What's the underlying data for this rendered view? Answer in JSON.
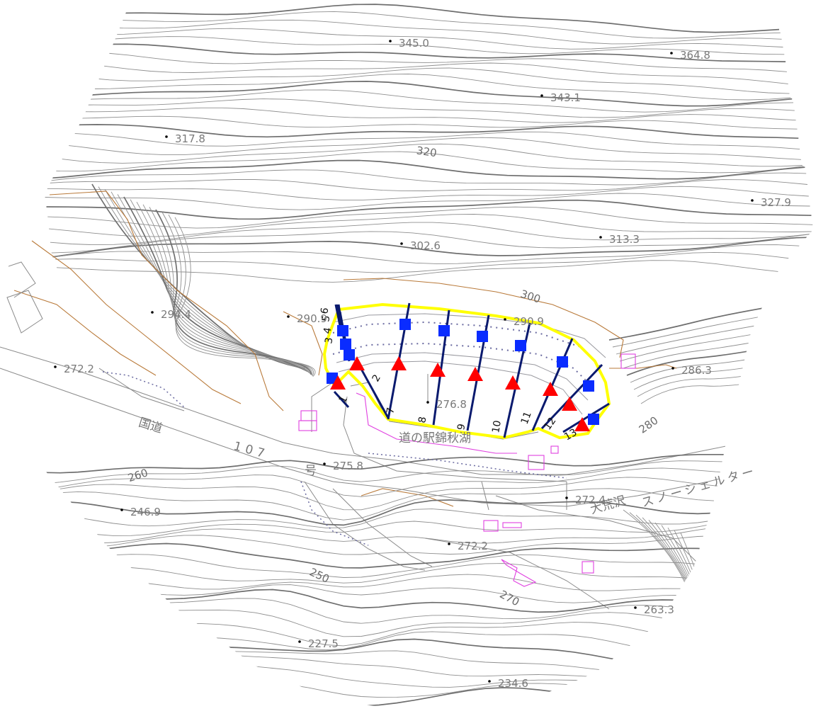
{
  "elevation_points": [
    {
      "label": "345.0"
    },
    {
      "label": "364.8"
    },
    {
      "label": "343.1"
    },
    {
      "label": "317.8"
    },
    {
      "label": "327.9"
    },
    {
      "label": "313.3"
    },
    {
      "label": "302.6"
    },
    {
      "label": "294.4"
    },
    {
      "label": "290.9"
    },
    {
      "label": "290.9"
    },
    {
      "label": "272.2"
    },
    {
      "label": "286.3"
    },
    {
      "label": "276.8"
    },
    {
      "label": "275.8"
    },
    {
      "label": "272.4"
    },
    {
      "label": "246.9"
    },
    {
      "label": "272.2"
    },
    {
      "label": "263.3"
    },
    {
      "label": "227.5"
    },
    {
      "label": "234.6"
    }
  ],
  "contour_labels": [
    "320",
    "300",
    "280",
    "260",
    "250",
    "270"
  ],
  "road_labels": [
    "国道",
    "107",
    "号",
    "大荒沢",
    "スノーシェルター"
  ],
  "place_label": "道の駅錦秋湖",
  "section_labels": [
    "1",
    "2",
    "3",
    "4",
    "5",
    "6",
    "7",
    "8",
    "9",
    "10",
    "11",
    "12",
    "13"
  ],
  "colors": {
    "contour": "#8f8f8f",
    "index_contour": "#6e6e6e",
    "slope_boundary": "#ffff00",
    "section_line": "#0a1a6e",
    "upper_marker": "#0a2cff",
    "lower_marker": "#ff0000",
    "building": "#e040e0",
    "cliff": "#b97a3a"
  },
  "markers": {
    "upper": "blue-square",
    "lower": "red-triangle"
  }
}
